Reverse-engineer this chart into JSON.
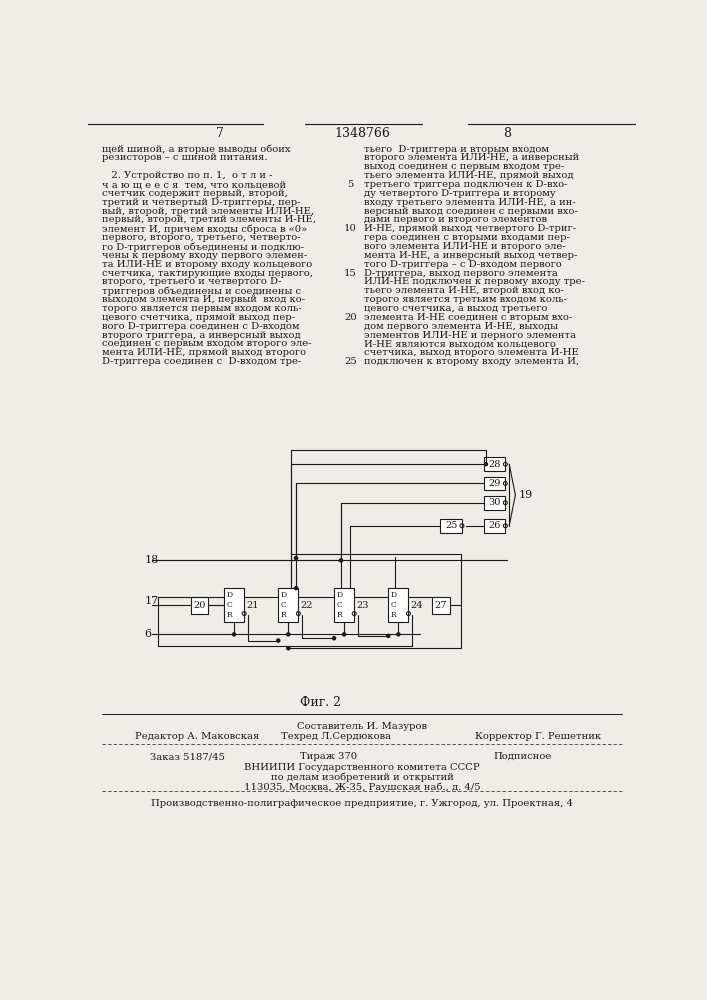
{
  "page_number_left": "7",
  "page_number_center": "1348766",
  "page_number_right": "8",
  "background_color": "#f0ede8",
  "text_color": "#1a1a1a",
  "left_column_text": [
    "щей шиной, а вторые выводы обоих",
    "резисторов – с шиной питания.",
    "",
    "   2. Устройство по п. 1,  о т л и -",
    "ч а ю щ е е с я  тем, что кольцевой",
    "счетчик содержит первый, второй,",
    "третий и четвертый D-триггеры, пер-",
    "вый, второй, третий элементы ИЛИ-НЕ,",
    "первый, второй, третий элементы И-НЕ,",
    "элемент И, причем входы сброса в «0»",
    "первого, второго, третьего, четверто-",
    "го D-триггеров объединены и подклю-",
    "чены к первому входу первого элемен-",
    "та ИЛИ-НЕ и второму входу кольцевого",
    "счетчика, тактирующие входы первого,",
    "второго, третьего и четвертого D-",
    "триггеров объединены и соединены с",
    "выходом элемента И, первый  вход ко-",
    "торого является первым входом коль-",
    "цевого счетчика, прямой выход пер-",
    "вого D-триггера соединен с D-входом",
    "второго триггера, а инверсный выход",
    "соединен с первым входом второго эле-",
    "мента ИЛИ-НЕ, прямой выход второго",
    "D-триггера соединен с  D-входом тре-"
  ],
  "right_column_text": [
    "тьего  D-триггера и вторым входом",
    "второго элемента ИЛИ-НЕ, а инверсный",
    "выход соединен с первым входом тре-",
    "тьего элемента ИЛИ-НЕ, прямой выход",
    "третьего триггера подключен к D-вхо-",
    "ду четвертого D-триггера и второму",
    "входу третьего элемента ИЛИ-НЕ, а ин-",
    "версный выход соединен с первыми вхо-",
    "дами первого и второго элементов",
    "И-НЕ, прямой выход четвертого D-триг-",
    "гера соединен с вторыми входами пер-",
    "вого элемента ИЛИ-НЕ и второго эле-",
    "мента И-НЕ, а инверсный выход четвер-",
    "того D-триггера – с D-входом первого",
    "D-триггера, выход первого элемента",
    "ИЛИ-НЕ подключен к первому входу тре-",
    "тьего элемента И-НЕ, второй вход ко-",
    "торого является третьим входом коль-",
    "цевого счетчика, а выход третьего",
    "элемента И-НЕ соединен с вторым вхо-",
    "дом первого элемента И-НЕ, выходы",
    "элементов ИЛИ-НЕ и перного элемента",
    "И-НЕ являются выходом кольцевого",
    "счетчика, выход второго элемента И-НЕ",
    "подключен к второму входу элемента И,"
  ],
  "line_numbers": [
    5,
    10,
    15,
    20,
    25
  ],
  "fig_caption": "Фиг. 2",
  "footer_compiler_label": "Составитель И. Мазуров",
  "footer_editor": "Редактор А. Маковская",
  "footer_tech": "Техред Л.Сердюкова",
  "footer_corrector": "Корректор Г. Решетник",
  "footer_order": "Заказ 5187/45",
  "footer_print": "Тираж 370",
  "footer_signed": "Подписное",
  "footer_org1": "ВНИИПИ Государственного комитета СССР",
  "footer_org2": "по делам изобретений и открытий",
  "footer_org3": "113035, Москва, Ж-35, Раушская наб., д. 4/5",
  "footer_prod": "Производственно-полиграфическое предприятие, г. Ужгород, ул. Проектная, 4"
}
